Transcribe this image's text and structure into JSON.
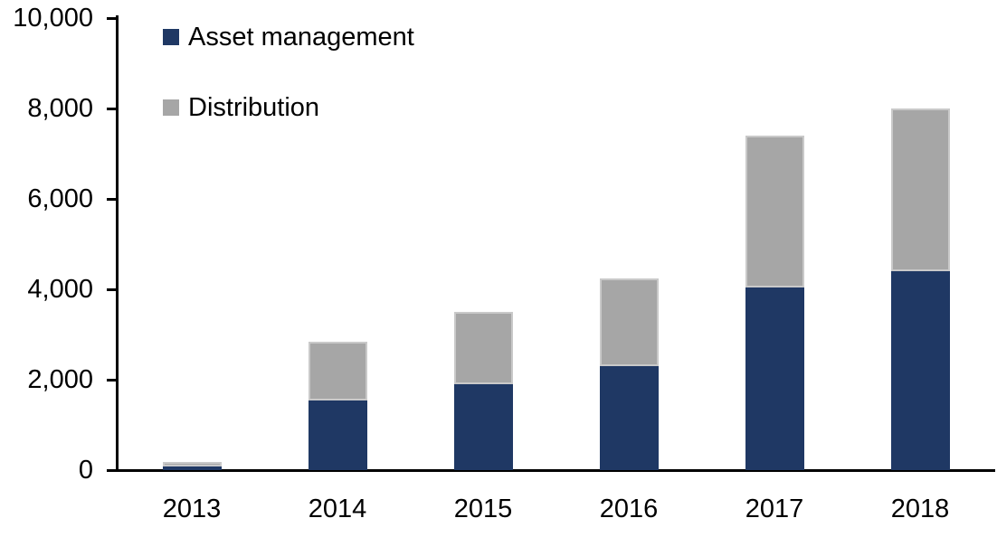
{
  "chart_data": {
    "type": "bar",
    "stacked": true,
    "title": "",
    "xlabel": "",
    "ylabel": "",
    "categories": [
      "2013",
      "2014",
      "2015",
      "2016",
      "2017",
      "2018"
    ],
    "series": [
      {
        "name": "Asset management",
        "color": "#1F3864",
        "values": [
          90,
          1550,
          1900,
          2300,
          4050,
          4400
        ]
      },
      {
        "name": "Distribution",
        "color": "#A6A6A6",
        "values": [
          100,
          1300,
          1600,
          1950,
          3350,
          3600
        ]
      }
    ],
    "totals": [
      190,
      2850,
      3500,
      4250,
      7400,
      8000
    ],
    "ylim": [
      0,
      10000
    ],
    "ytick_interval": 2000,
    "ytick_labels": [
      "0",
      "2,000",
      "4,000",
      "6,000",
      "8,000",
      "10,000"
    ],
    "legend": {
      "position": "top-left-inside",
      "entries": [
        "Asset management",
        "Distribution"
      ]
    },
    "grid": false,
    "colors": {
      "axis": "#000000",
      "background": "#FFFFFF"
    }
  }
}
